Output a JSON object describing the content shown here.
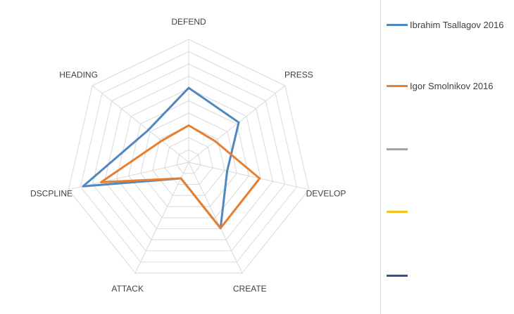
{
  "chart_data": {
    "type": "radar",
    "axes": [
      "DEFEND",
      "PRESS",
      "DEVELOP",
      "CREATE",
      "ATTACK",
      "DSCPLINE",
      "HEADING"
    ],
    "rmin": 0,
    "rmax": 10,
    "gridlines": [
      1,
      2,
      3,
      4,
      5,
      6,
      7,
      8,
      9,
      10
    ],
    "series": [
      {
        "name": "Ibrahim Tsallagov 2016",
        "color": "#4f88c1",
        "values": [
          6.05,
          5.2,
          3.2,
          5.95,
          1.45,
          8.8,
          4.2
        ]
      },
      {
        "name": "Igor Smolnikov 2016",
        "color": "#e77f2e",
        "values": [
          3.0,
          2.75,
          5.9,
          5.95,
          1.45,
          7.3,
          2.8
        ]
      },
      {
        "name": "",
        "color": "#a5a5a5",
        "values": []
      },
      {
        "name": "",
        "color": "#f5c21b",
        "values": []
      },
      {
        "name": "",
        "color": "#2f5597",
        "values": []
      }
    ],
    "legend": "right"
  }
}
